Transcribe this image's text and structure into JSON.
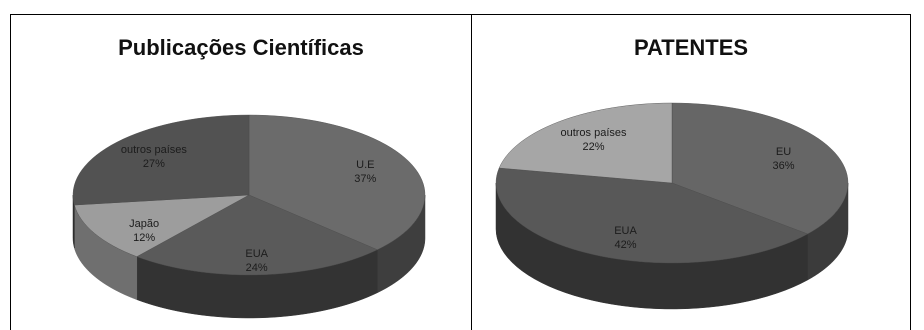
{
  "chart_data": [
    {
      "type": "pie",
      "title": "Publicações Científicas",
      "three_d": true,
      "slices": [
        {
          "label": "U.E",
          "value": 37,
          "value_label": "37%",
          "color": "#6b6b6b",
          "side_color": "#3e3e3e"
        },
        {
          "label": "EUA",
          "value": 24,
          "value_label": "24%",
          "color": "#5a5a5a",
          "side_color": "#333333"
        },
        {
          "label": "Japão",
          "value": 12,
          "value_label": "12%",
          "color": "#9d9d9d",
          "side_color": "#6f6f6f"
        },
        {
          "label": "outros países",
          "value": 27,
          "value_label": "27%",
          "color": "#525252",
          "side_color": "#2e2e2e"
        }
      ]
    },
    {
      "type": "pie",
      "title": "PATENTES",
      "three_d": true,
      "slices": [
        {
          "label": "EU",
          "value": 36,
          "value_label": "36%",
          "color": "#666666",
          "side_color": "#3b3b3b"
        },
        {
          "label": "EUA",
          "value": 42,
          "value_label": "42%",
          "color": "#585858",
          "side_color": "#323232"
        },
        {
          "label": "outros países",
          "value": 22,
          "value_label": "22%",
          "color": "#a6a6a6",
          "side_color": "#757575"
        }
      ]
    }
  ]
}
